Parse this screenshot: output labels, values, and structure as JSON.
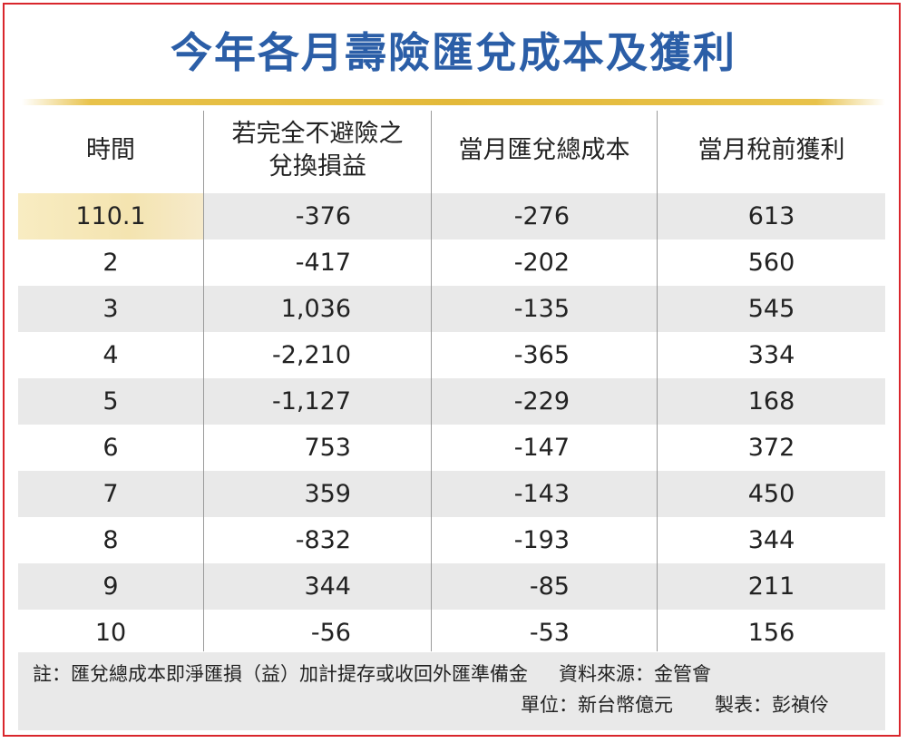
{
  "chart_data": {
    "type": "table",
    "title": "今年各月壽險匯兌成本及獲利",
    "columns": [
      "時間",
      "若完全不避險之兌換損益",
      "當月匯兌總成本",
      "當月稅前獲利"
    ],
    "header_lines": [
      [
        "時間"
      ],
      [
        "若完全不避險之",
        "兌換損益"
      ],
      [
        "當月匯兌總成本"
      ],
      [
        "當月稅前獲利"
      ]
    ],
    "rows": [
      [
        "110.1",
        "-376",
        "-276",
        "613"
      ],
      [
        "2",
        "-417",
        "-202",
        "560"
      ],
      [
        "3",
        "1,036",
        "-135",
        "545"
      ],
      [
        "4",
        "-2,210",
        "-365",
        "334"
      ],
      [
        "5",
        "-1,127",
        "-229",
        "168"
      ],
      [
        "6",
        "753",
        "-147",
        "372"
      ],
      [
        "7",
        "359",
        "-143",
        "450"
      ],
      [
        "8",
        "-832",
        "-193",
        "344"
      ],
      [
        "9",
        "344",
        "-85",
        "211"
      ],
      [
        "10",
        "-56",
        "-53",
        "156"
      ]
    ],
    "note": "註：匯兌總成本即淨匯損（益）加計提存或收回外匯準備金",
    "source": "資料來源：金管會",
    "unit": "單位：新台幣億元",
    "author": "製表：彭禎伶"
  },
  "colors": {
    "title": "#2b5ea7",
    "frame": "#d9262c",
    "rule": "#e3b93a",
    "shade": "#e9e9e9"
  }
}
